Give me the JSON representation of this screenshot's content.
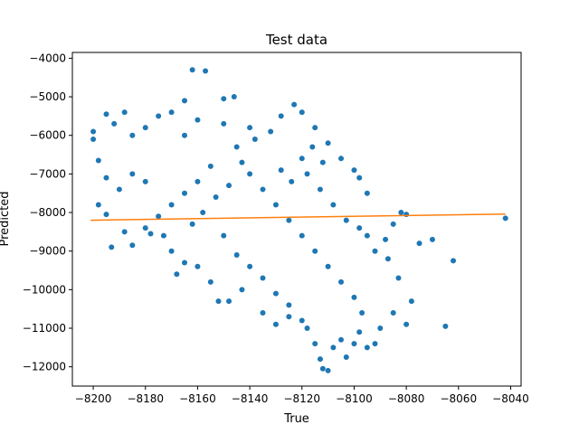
{
  "chart_data": {
    "type": "scatter",
    "title": "Test data",
    "xlabel": "True",
    "ylabel": "Predicted",
    "xlim": [
      -8208,
      -8036
    ],
    "ylim": [
      -12500,
      -3850
    ],
    "x_ticks": [
      -8200,
      -8180,
      -8160,
      -8140,
      -8120,
      -8100,
      -8080,
      -8060,
      -8040
    ],
    "y_ticks": [
      -12000,
      -11000,
      -10000,
      -9000,
      -8000,
      -7000,
      -6000,
      -5000,
      -4000
    ],
    "x_tick_labels": [
      "−8200",
      "−8180",
      "−8160",
      "−8140",
      "−8120",
      "−8100",
      "−8080",
      "−8060",
      "−8040"
    ],
    "y_tick_labels": [
      "−12000",
      "−11000",
      "−10000",
      "−9000",
      "−8000",
      "−7000",
      "−6000",
      "−5000",
      "−4000"
    ],
    "grid": false,
    "series": [
      {
        "kind": "scatter",
        "color": "#1f77b4",
        "points": [
          [
            -8162,
            -4300
          ],
          [
            -8157,
            -4330
          ],
          [
            -8146,
            -5000
          ],
          [
            -8150,
            -5050
          ],
          [
            -8165,
            -5100
          ],
          [
            -8170,
            -5400
          ],
          [
            -8195,
            -5450
          ],
          [
            -8188,
            -5400
          ],
          [
            -8192,
            -5700
          ],
          [
            -8175,
            -5500
          ],
          [
            -8160,
            -5600
          ],
          [
            -8180,
            -5800
          ],
          [
            -8200,
            -5900
          ],
          [
            -8185,
            -6000
          ],
          [
            -8165,
            -6000
          ],
          [
            -8150,
            -5700
          ],
          [
            -8140,
            -5800
          ],
          [
            -8200,
            -6100
          ],
          [
            -8198,
            -6650
          ],
          [
            -8195,
            -7100
          ],
          [
            -8190,
            -7400
          ],
          [
            -8185,
            -7000
          ],
          [
            -8180,
            -7200
          ],
          [
            -8198,
            -7800
          ],
          [
            -8195,
            -8050
          ],
          [
            -8188,
            -8500
          ],
          [
            -8193,
            -8900
          ],
          [
            -8185,
            -8850
          ],
          [
            -8178,
            -8550
          ],
          [
            -8173,
            -8600
          ],
          [
            -8170,
            -9000
          ],
          [
            -8165,
            -9300
          ],
          [
            -8168,
            -9600
          ],
          [
            -8160,
            -9400
          ],
          [
            -8155,
            -9800
          ],
          [
            -8152,
            -10300
          ],
          [
            -8148,
            -10300
          ],
          [
            -8143,
            -10000
          ],
          [
            -8135,
            -10600
          ],
          [
            -8130,
            -10900
          ],
          [
            -8125,
            -10700
          ],
          [
            -8120,
            -10800
          ],
          [
            -8118,
            -11000
          ],
          [
            -8115,
            -11400
          ],
          [
            -8113,
            -11800
          ],
          [
            -8112,
            -12050
          ],
          [
            -8110,
            -12100
          ],
          [
            -8108,
            -11500
          ],
          [
            -8105,
            -11300
          ],
          [
            -8103,
            -11750
          ],
          [
            -8100,
            -11400
          ],
          [
            -8098,
            -11100
          ],
          [
            -8095,
            -11500
          ],
          [
            -8092,
            -11400
          ],
          [
            -8090,
            -11000
          ],
          [
            -8085,
            -10600
          ],
          [
            -8080,
            -10900
          ],
          [
            -8078,
            -10300
          ],
          [
            -8083,
            -9700
          ],
          [
            -8087,
            -9200
          ],
          [
            -8092,
            -9000
          ],
          [
            -8095,
            -8600
          ],
          [
            -8088,
            -8700
          ],
          [
            -8085,
            -8300
          ],
          [
            -8082,
            -8000
          ],
          [
            -8080,
            -8050
          ],
          [
            -8075,
            -8800
          ],
          [
            -8070,
            -8700
          ],
          [
            -8065,
            -10950
          ],
          [
            -8062,
            -9250
          ],
          [
            -8042,
            -8150
          ],
          [
            -8095,
            -7500
          ],
          [
            -8098,
            -7100
          ],
          [
            -8100,
            -6900
          ],
          [
            -8105,
            -6600
          ],
          [
            -8110,
            -6200
          ],
          [
            -8115,
            -5800
          ],
          [
            -8120,
            -5400
          ],
          [
            -8123,
            -5200
          ],
          [
            -8128,
            -5500
          ],
          [
            -8132,
            -5900
          ],
          [
            -8138,
            -6100
          ],
          [
            -8145,
            -6300
          ],
          [
            -8155,
            -6800
          ],
          [
            -8160,
            -7200
          ],
          [
            -8165,
            -7500
          ],
          [
            -8170,
            -7800
          ],
          [
            -8175,
            -8100
          ],
          [
            -8180,
            -8400
          ],
          [
            -8150,
            -8600
          ],
          [
            -8145,
            -9100
          ],
          [
            -8140,
            -9400
          ],
          [
            -8135,
            -9700
          ],
          [
            -8130,
            -10100
          ],
          [
            -8125,
            -10400
          ],
          [
            -8140,
            -7000
          ],
          [
            -8135,
            -7400
          ],
          [
            -8130,
            -7800
          ],
          [
            -8125,
            -8200
          ],
          [
            -8120,
            -8600
          ],
          [
            -8115,
            -9000
          ],
          [
            -8110,
            -9400
          ],
          [
            -8105,
            -9800
          ],
          [
            -8100,
            -10200
          ],
          [
            -8097,
            -10600
          ],
          [
            -8118,
            -7000
          ],
          [
            -8113,
            -7400
          ],
          [
            -8108,
            -7800
          ],
          [
            -8103,
            -8200
          ],
          [
            -8098,
            -8400
          ],
          [
            -8120,
            -6600
          ],
          [
            -8116,
            -6300
          ],
          [
            -8112,
            -6700
          ],
          [
            -8124,
            -7200
          ],
          [
            -8128,
            -6900
          ],
          [
            -8143,
            -6700
          ],
          [
            -8148,
            -7300
          ],
          [
            -8153,
            -7600
          ],
          [
            -8158,
            -8000
          ],
          [
            -8162,
            -8300
          ]
        ]
      },
      {
        "kind": "line",
        "color": "#ff7f0e",
        "points": [
          [
            -8201,
            -8200
          ],
          [
            -8042,
            -8040
          ]
        ]
      }
    ]
  }
}
